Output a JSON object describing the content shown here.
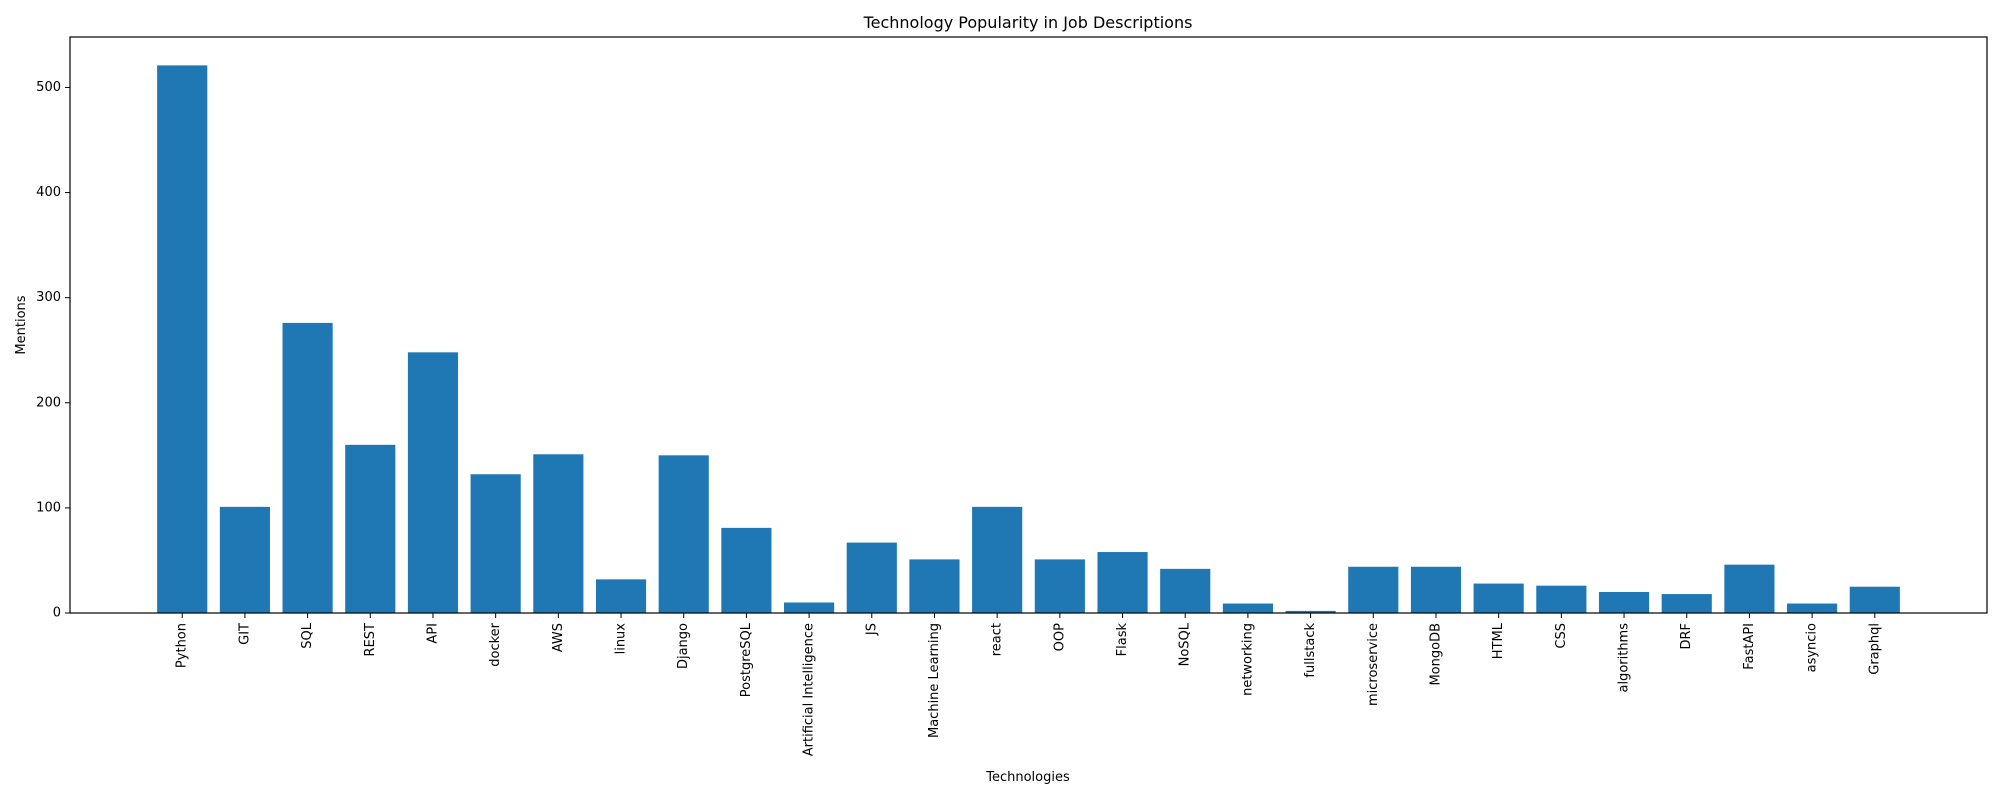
{
  "chart_data": {
    "type": "bar",
    "title": "Technology Popularity in Job Descriptions",
    "xlabel": "Technologies",
    "ylabel": "Mentions",
    "ylim": [
      0,
      548
    ],
    "yticks": [
      0,
      100,
      200,
      300,
      400,
      500
    ],
    "grid": false,
    "bar_color": "#1f77b4",
    "categories": [
      "Python",
      "GIT",
      "SQL",
      "REST",
      "API",
      "docker",
      "AWS",
      "linux",
      "Django",
      "PostgreSQL",
      "Artificial Intelligence",
      "JS",
      "Machine Learning",
      "react",
      "OOP",
      "Flask",
      "NoSQL",
      "networking",
      "fullstack",
      "microservice",
      "MongoDB",
      "HTML",
      "CSS",
      "algorithms",
      "DRF",
      "FastAPI",
      "asyncio",
      "Graphql"
    ],
    "values": [
      521,
      101,
      276,
      160,
      248,
      132,
      151,
      32,
      150,
      81,
      10,
      67,
      51,
      101,
      51,
      58,
      42,
      9,
      2,
      44,
      44,
      28,
      26,
      20,
      18,
      46,
      9,
      25
    ]
  }
}
